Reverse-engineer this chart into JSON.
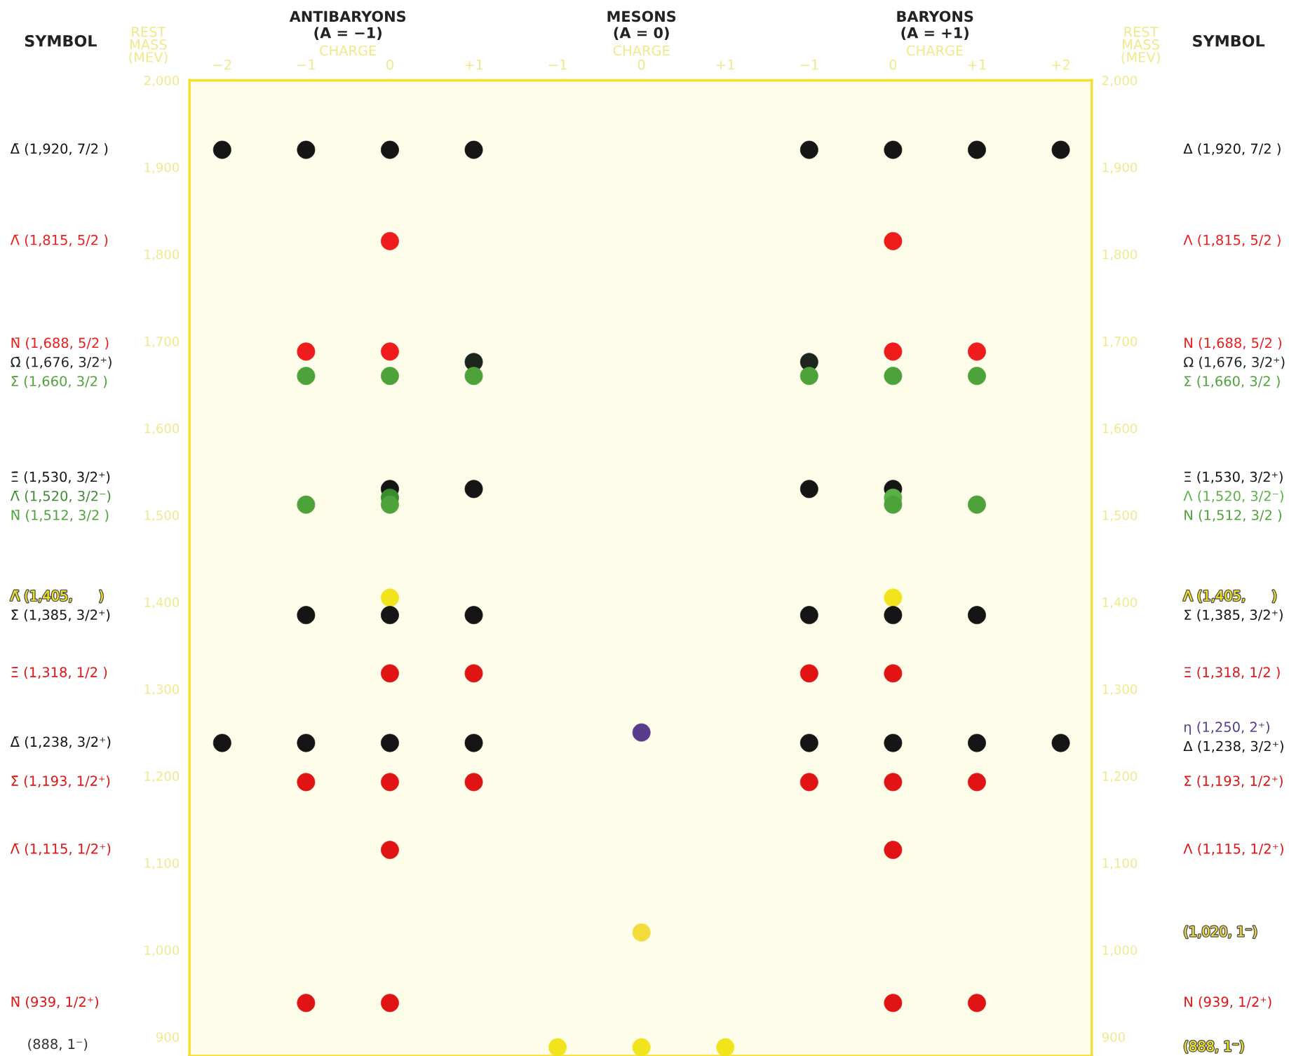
{
  "chart_data": {
    "type": "scatter",
    "ylabel": "REST\nMASS\n(MEV)",
    "y2label": "REST\nMASS\n(MEV)",
    "xlabel": "CHARGE",
    "categories": [
      "−2",
      "−1",
      "0",
      "+1",
      "−1",
      "0",
      "+1",
      "−1",
      "0",
      "+1",
      "+2"
    ],
    "ylim": [
      878,
      2000
    ],
    "yticks": [
      {
        "value": 900,
        "label": "900"
      },
      {
        "value": 1000,
        "label": "1,000"
      },
      {
        "value": 1100,
        "label": "1,100"
      },
      {
        "value": 1200,
        "label": "1,200"
      },
      {
        "value": 1300,
        "label": "1,300"
      },
      {
        "value": 1400,
        "label": "1,400"
      },
      {
        "value": 1500,
        "label": "1,500"
      },
      {
        "value": 1600,
        "label": "1,600"
      },
      {
        "value": 1700,
        "label": "1,700"
      },
      {
        "value": 1800,
        "label": "1,800"
      },
      {
        "value": 1900,
        "label": "1,900"
      },
      {
        "value": 2000,
        "label": "2,000"
      }
    ],
    "y2lim": [
      878,
      2000
    ],
    "y2ticks": [
      {
        "value": 900,
        "label": "900"
      },
      {
        "value": 1000,
        "label": "1,000"
      },
      {
        "value": 1100,
        "label": "1,100"
      },
      {
        "value": 1200,
        "label": "1,200"
      },
      {
        "value": 1300,
        "label": "1,300"
      },
      {
        "value": 1400,
        "label": "1,400"
      },
      {
        "value": 1500,
        "label": "1,500"
      },
      {
        "value": 1600,
        "label": "1,600"
      },
      {
        "value": 1700,
        "label": "1,700"
      },
      {
        "value": 1800,
        "label": "1,800"
      },
      {
        "value": 1900,
        "label": "1,900"
      },
      {
        "value": 2000,
        "label": "2,000"
      }
    ],
    "grid": false,
    "legend": false,
    "marker": "circle",
    "annotations": [
      "ANTIBARYONS\n(A = −1)",
      "MESONS\n(A = 0)",
      "BARYONS\n(A = +1)",
      "SYMBOL",
      "SYMBOL",
      "Δ̄ (1,920, 7/2 )",
      "Δ (1,920, 7/2 )",
      "Λ̄ (1,815, 5/2 )",
      "Λ (1,815, 5/2 )",
      "N̄ (1,688, 5/2 )",
      "N (1,688, 5/2 )",
      "Ω̄ (1,676, 3/2⁺)",
      "Ω (1,676, 3/2⁺)",
      "Σ̄ (1,660, 3/2 )",
      "Σ (1,660, 3/2 )",
      "Ξ̄ (1,530, 3/2⁺)",
      "Ξ (1,530, 3/2⁺)",
      "Λ̄ (1,520, 3/2⁻)",
      "Λ (1,520, 3/2⁻)",
      "N̄ (1,512, 3/2 )",
      "N (1,512, 3/2 )",
      "Λ̄ (1,405,      )",
      "Λ (1,405,      )",
      "Σ̄ (1,385, 3/2⁺)",
      "Σ (1,385, 3/2⁺)",
      "Ξ̄ (1,318, 1/2 )",
      "Ξ (1,318, 1/2 )",
      "η (1,250, 2⁺)",
      "Δ̄ (1,238, 3/2⁺)",
      "Δ (1,238, 3/2⁺)",
      "Σ̄ (1,193, 1/2⁺)",
      "Σ (1,193, 1/2⁺)",
      "Λ̄ (1,115, 1/2⁺)",
      "Λ (1,115, 1/2⁺)",
      "(1,020, 1⁻)",
      "N̄ (939, 1/2⁺)",
      "N (939, 1/2⁺)",
      "(888, 1⁻)",
      "(888, 1⁻)"
    ],
    "series": [
      {
        "color": "#151515",
        "values": [
          1920,
          1920,
          1920,
          1920,
          null,
          null,
          null,
          null,
          null,
          null,
          null
        ]
      },
      {
        "color": "#151515",
        "values": [
          null,
          null,
          null,
          null,
          null,
          null,
          null,
          1920,
          1920,
          1920,
          1920
        ]
      },
      {
        "color": "#ee1c1c",
        "values": [
          null,
          null,
          1815,
          null,
          null,
          null,
          null,
          null,
          null,
          null,
          null
        ]
      },
      {
        "color": "#ee1c1c",
        "values": [
          null,
          null,
          null,
          null,
          null,
          null,
          null,
          null,
          1815,
          null,
          null
        ]
      },
      {
        "color": "#ee1c1c",
        "values": [
          null,
          1688,
          1688,
          null,
          null,
          null,
          null,
          null,
          null,
          null,
          null
        ]
      },
      {
        "color": "#ee1c1c",
        "values": [
          null,
          null,
          null,
          null,
          null,
          null,
          null,
          null,
          1688,
          1688,
          null
        ]
      },
      {
        "color": "#1c261c",
        "values": [
          null,
          null,
          null,
          1676,
          null,
          null,
          null,
          null,
          null,
          null,
          null
        ]
      },
      {
        "color": "#1c261c",
        "values": [
          null,
          null,
          null,
          null,
          null,
          null,
          null,
          1676,
          null,
          null,
          null
        ]
      },
      {
        "color": "#4ea23a",
        "values": [
          null,
          1660,
          1660,
          1660,
          null,
          null,
          null,
          null,
          null,
          null,
          null
        ]
      },
      {
        "color": "#4ea23a",
        "values": [
          null,
          null,
          null,
          null,
          null,
          null,
          null,
          1660,
          1660,
          1660,
          null
        ]
      },
      {
        "color": "#151515",
        "values": [
          null,
          null,
          1530,
          1530,
          null,
          null,
          null,
          null,
          null,
          null,
          null
        ]
      },
      {
        "color": "#151515",
        "values": [
          null,
          null,
          null,
          null,
          null,
          null,
          null,
          1530,
          1530,
          null,
          null
        ]
      },
      {
        "color": "#3c8a30",
        "values": [
          null,
          null,
          1520,
          null,
          null,
          null,
          null,
          null,
          null,
          null,
          null
        ]
      },
      {
        "color": "#5cb048",
        "values": [
          null,
          null,
          null,
          null,
          null,
          null,
          null,
          null,
          1520,
          null,
          null
        ]
      },
      {
        "color": "#4ea23a",
        "values": [
          null,
          1512,
          1512,
          null,
          null,
          null,
          null,
          null,
          null,
          null,
          null
        ]
      },
      {
        "color": "#4ea23a",
        "values": [
          null,
          null,
          null,
          null,
          null,
          null,
          null,
          null,
          1512,
          1512,
          null
        ]
      },
      {
        "color": "#f2e41c",
        "values": [
          null,
          null,
          1405,
          null,
          null,
          null,
          null,
          null,
          null,
          null,
          null
        ]
      },
      {
        "color": "#f2e41c",
        "values": [
          null,
          null,
          null,
          null,
          null,
          null,
          null,
          null,
          1405,
          null,
          null
        ]
      },
      {
        "color": "#151515",
        "values": [
          null,
          1385,
          1385,
          1385,
          null,
          null,
          null,
          null,
          null,
          null,
          null
        ]
      },
      {
        "color": "#151515",
        "values": [
          null,
          null,
          null,
          null,
          null,
          null,
          null,
          1385,
          1385,
          1385,
          null
        ]
      },
      {
        "color": "#e01414",
        "values": [
          null,
          null,
          1318,
          1318,
          null,
          null,
          null,
          null,
          null,
          null,
          null
        ]
      },
      {
        "color": "#e01414",
        "values": [
          null,
          null,
          null,
          null,
          null,
          null,
          null,
          1318,
          1318,
          null,
          null
        ]
      },
      {
        "color": "#5a3c8c",
        "values": [
          null,
          null,
          null,
          null,
          null,
          1250,
          null,
          null,
          null,
          null,
          null
        ]
      },
      {
        "color": "#151515",
        "values": [
          1238,
          1238,
          1238,
          1238,
          null,
          null,
          null,
          null,
          null,
          null,
          null
        ]
      },
      {
        "color": "#151515",
        "values": [
          null,
          null,
          null,
          null,
          null,
          null,
          null,
          1238,
          1238,
          1238,
          1238
        ]
      },
      {
        "color": "#e01414",
        "values": [
          null,
          1193,
          1193,
          1193,
          null,
          null,
          null,
          null,
          null,
          null,
          null
        ]
      },
      {
        "color": "#e01414",
        "values": [
          null,
          null,
          null,
          null,
          null,
          null,
          null,
          1193,
          1193,
          1193,
          null
        ]
      },
      {
        "color": "#e01414",
        "values": [
          null,
          null,
          1115,
          null,
          null,
          null,
          null,
          null,
          null,
          null,
          null
        ]
      },
      {
        "color": "#e01414",
        "values": [
          null,
          null,
          null,
          null,
          null,
          null,
          null,
          null,
          1115,
          null,
          null
        ]
      },
      {
        "color": "#f2dc3c",
        "values": [
          null,
          null,
          null,
          null,
          null,
          1020,
          null,
          null,
          null,
          null,
          null
        ]
      },
      {
        "color": "#e01414",
        "values": [
          null,
          939,
          939,
          null,
          null,
          null,
          null,
          null,
          null,
          null,
          null
        ]
      },
      {
        "color": "#e01414",
        "values": [
          null,
          null,
          null,
          null,
          null,
          null,
          null,
          null,
          939,
          939,
          null
        ]
      },
      {
        "color": "#f2e41c",
        "values": [
          null,
          null,
          null,
          null,
          888,
          888,
          888,
          null,
          null,
          null,
          null
        ]
      }
    ]
  }
}
